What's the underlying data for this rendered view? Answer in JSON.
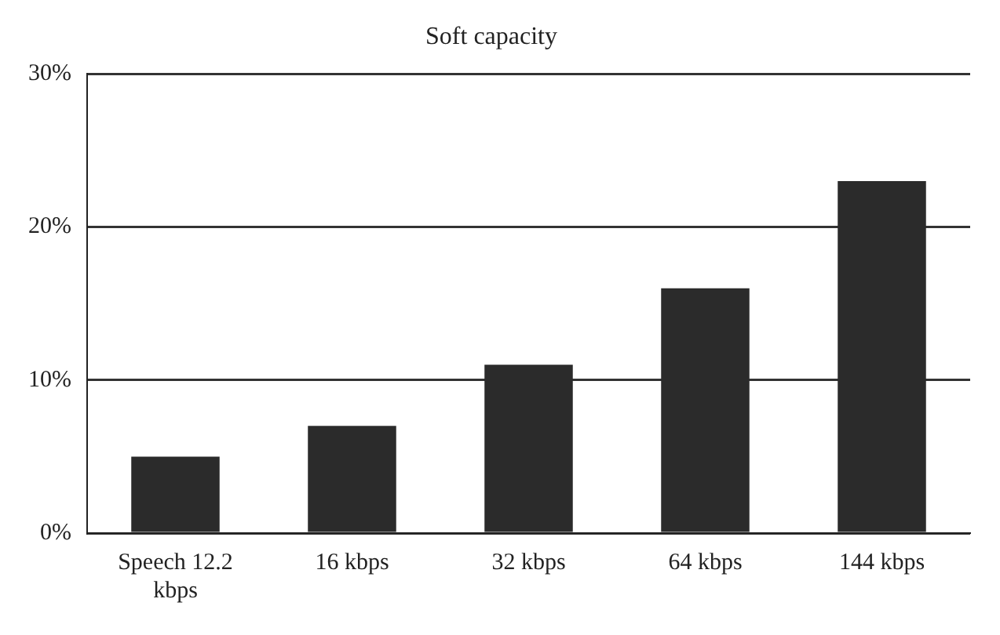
{
  "chart_data": {
    "type": "bar",
    "title": "Soft capacity",
    "categories": [
      "Speech 12.2 kbps",
      "16 kbps",
      "32 kbps",
      "64 kbps",
      "144 kbps"
    ],
    "values": [
      5,
      7,
      11,
      16,
      23
    ],
    "color": "#2b2b2b",
    "ylim": [
      0,
      30
    ],
    "yticks": [
      {
        "value": 0,
        "label": "0%"
      },
      {
        "value": 10,
        "label": "10%"
      },
      {
        "value": 20,
        "label": "20%"
      },
      {
        "value": 30,
        "label": "30%"
      }
    ],
    "grid": "y"
  }
}
